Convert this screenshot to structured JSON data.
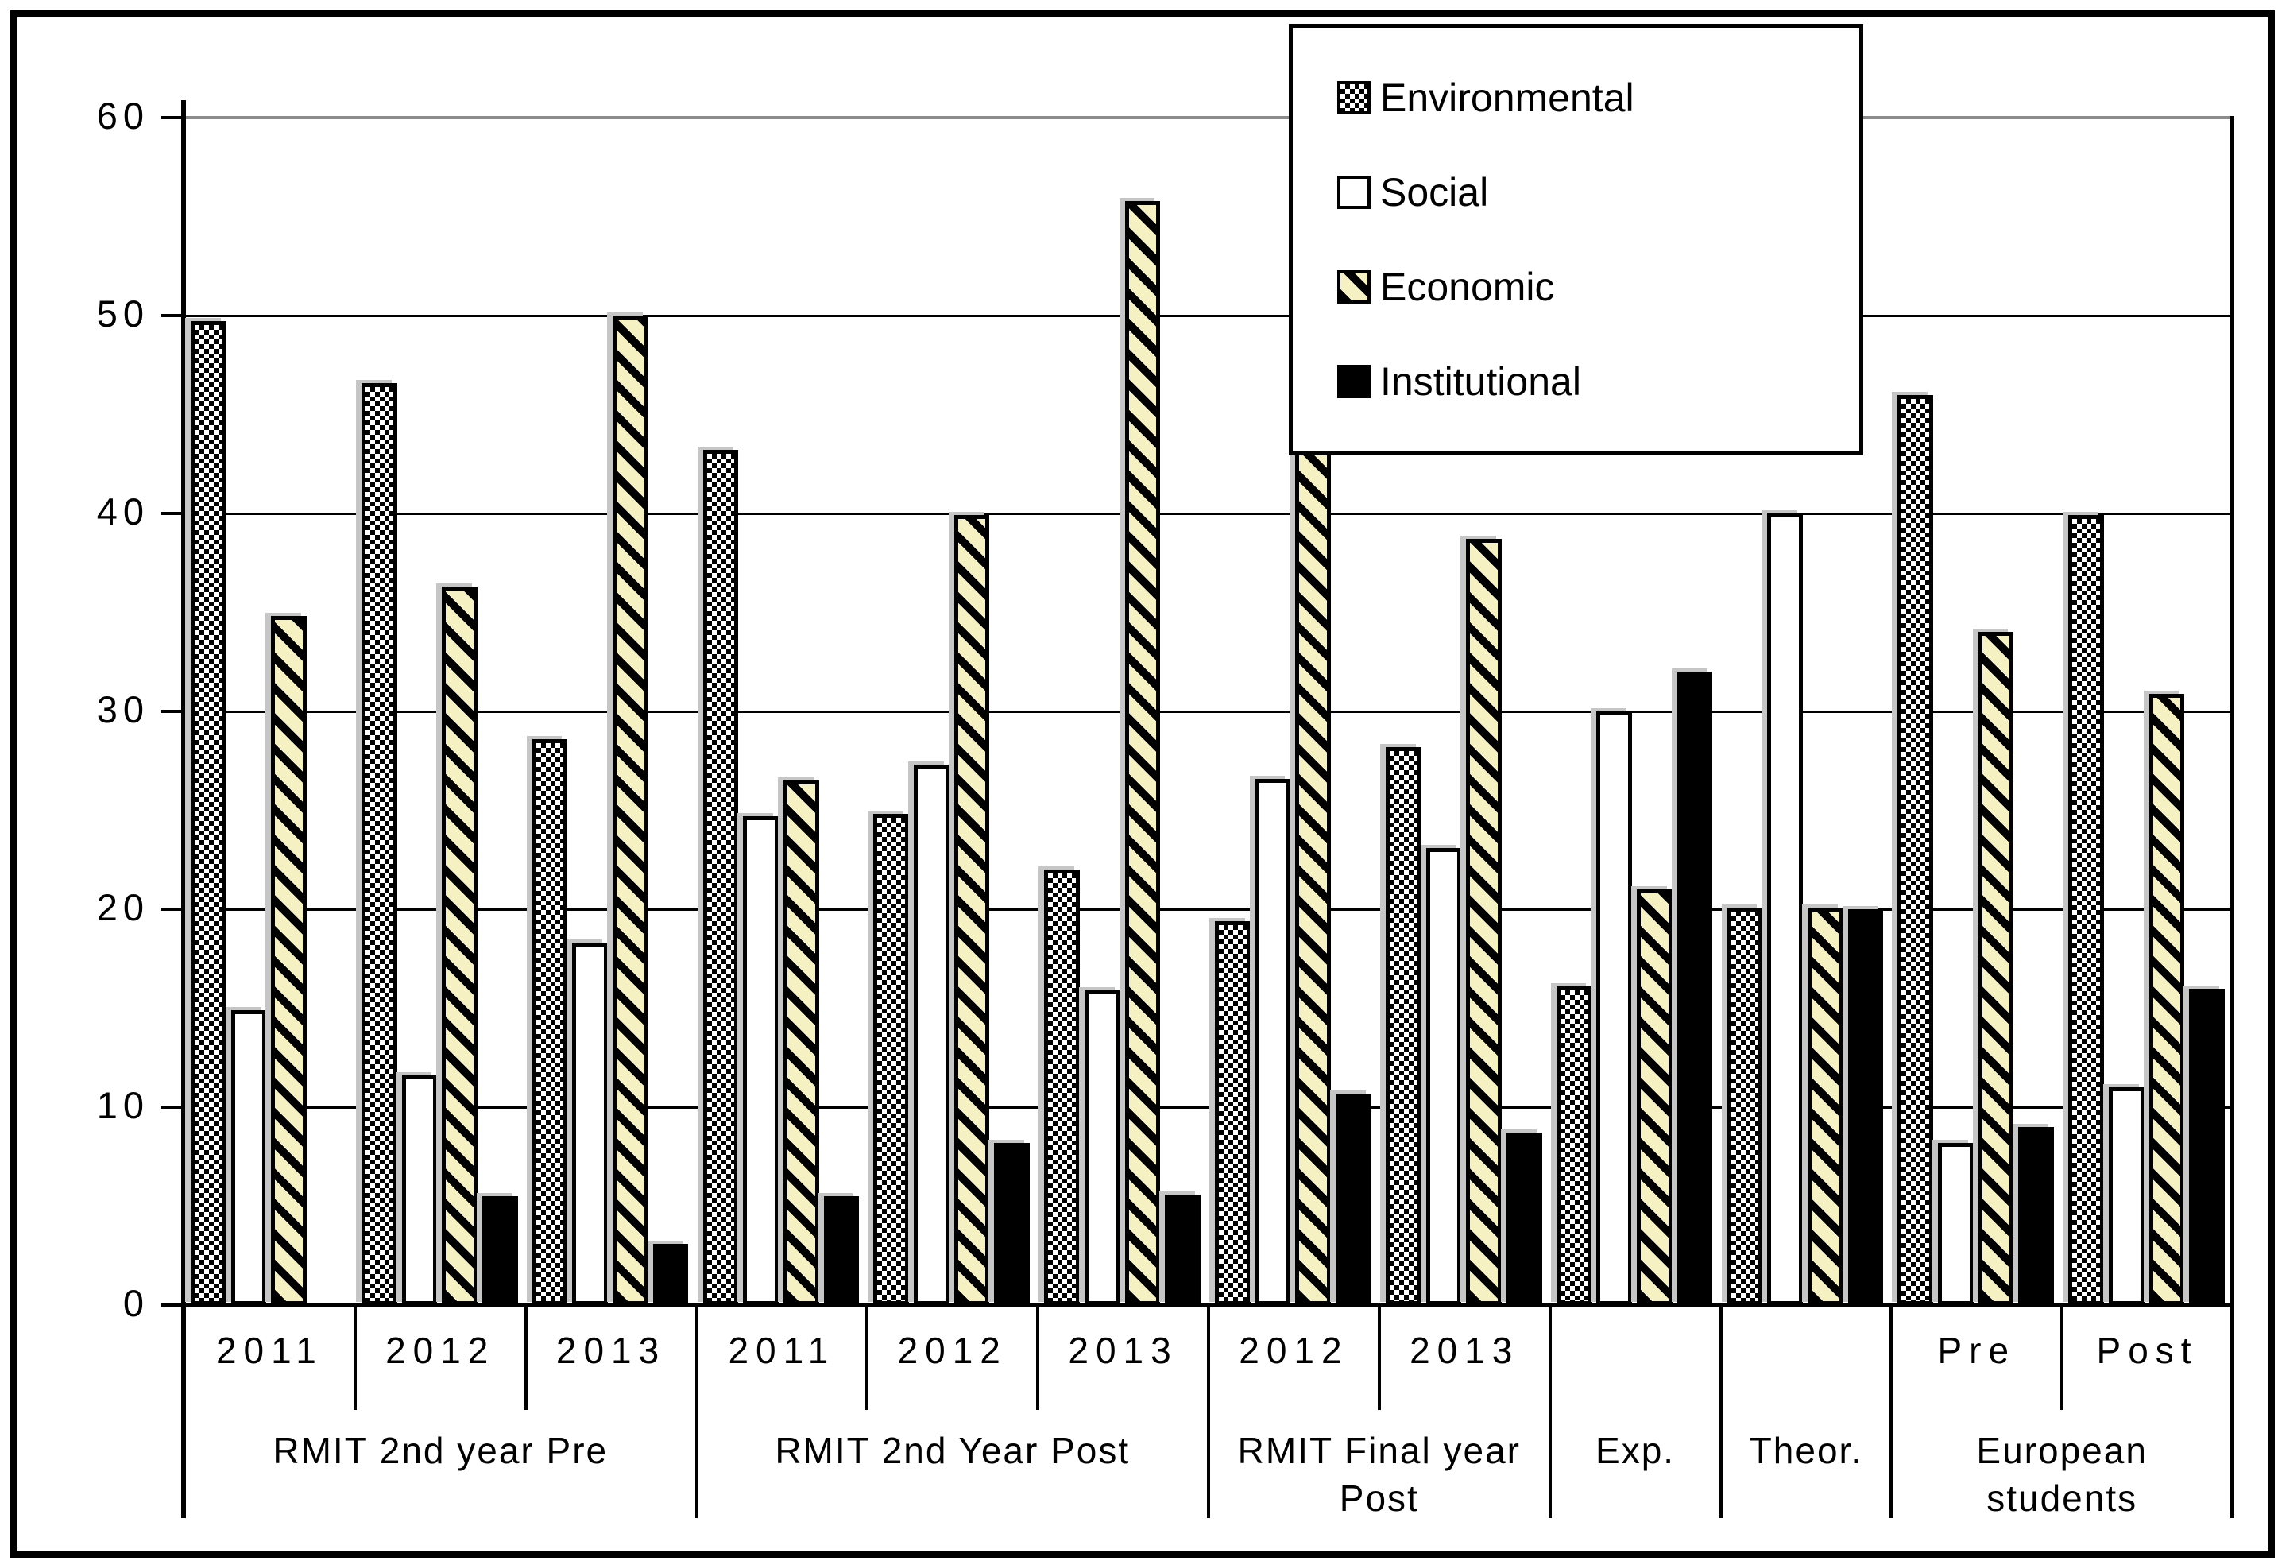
{
  "chart_data": {
    "type": "bar",
    "title": "",
    "xlabel": "",
    "ylabel": "",
    "ylim": [
      0,
      60
    ],
    "yticks": [
      0,
      10,
      20,
      30,
      40,
      50,
      60
    ],
    "grid": true,
    "legend_position": "top-right",
    "colors": {
      "environmental_pattern": "black-white-checker",
      "social_fill": "#ffffff",
      "economic_fill": "#f5f1c3",
      "economic_stripe": "#000000",
      "institutional_fill": "#000000",
      "bar_border": "#000000",
      "top_gridline": "#8c8c8c",
      "gridline": "#000000",
      "shadow": "#c6c6c6"
    },
    "series": [
      {
        "name": "Environmental",
        "pattern": "checker"
      },
      {
        "name": "Social",
        "pattern": "white"
      },
      {
        "name": "Economic",
        "pattern": "hatch"
      },
      {
        "name": "Institutional",
        "pattern": "solid"
      }
    ],
    "sections": [
      {
        "label": "RMIT 2nd year Pre",
        "cells": [
          {
            "tick": "2011",
            "values": [
              49.7,
              14.9,
              34.8,
              0
            ]
          },
          {
            "tick": "2012",
            "values": [
              46.6,
              11.6,
              36.3,
              5.5
            ]
          },
          {
            "tick": "2013",
            "values": [
              28.6,
              18.3,
              50.0,
              3.1
            ]
          }
        ]
      },
      {
        "label": "RMIT 2nd Year Post",
        "cells": [
          {
            "tick": "2011",
            "values": [
              43.2,
              24.7,
              26.5,
              5.5
            ]
          },
          {
            "tick": "2012",
            "values": [
              24.8,
              27.3,
              39.9,
              8.2
            ]
          },
          {
            "tick": "2013",
            "values": [
              22.0,
              15.9,
              55.8,
              5.6
            ]
          }
        ]
      },
      {
        "label": "RMIT Final year Post",
        "cells": [
          {
            "tick": "2012",
            "values": [
              19.4,
              26.6,
              43.9,
              10.7
            ]
          },
          {
            "tick": "2013",
            "values": [
              28.2,
              23.1,
              38.7,
              8.7
            ]
          }
        ]
      },
      {
        "label": "Exp.",
        "cells": [
          {
            "tick": "",
            "values": [
              16.1,
              30.0,
              21.0,
              32.0
            ]
          }
        ]
      },
      {
        "label": "Theor.",
        "cells": [
          {
            "tick": "",
            "values": [
              20.1,
              40.0,
              20.1,
              20.0
            ]
          }
        ]
      },
      {
        "label": "European students",
        "cells": [
          {
            "tick": "Pre",
            "values": [
              46.0,
              8.2,
              34.0,
              9.0
            ]
          },
          {
            "tick": "Post",
            "values": [
              39.9,
              11.0,
              30.9,
              16.0
            ]
          }
        ]
      }
    ]
  }
}
